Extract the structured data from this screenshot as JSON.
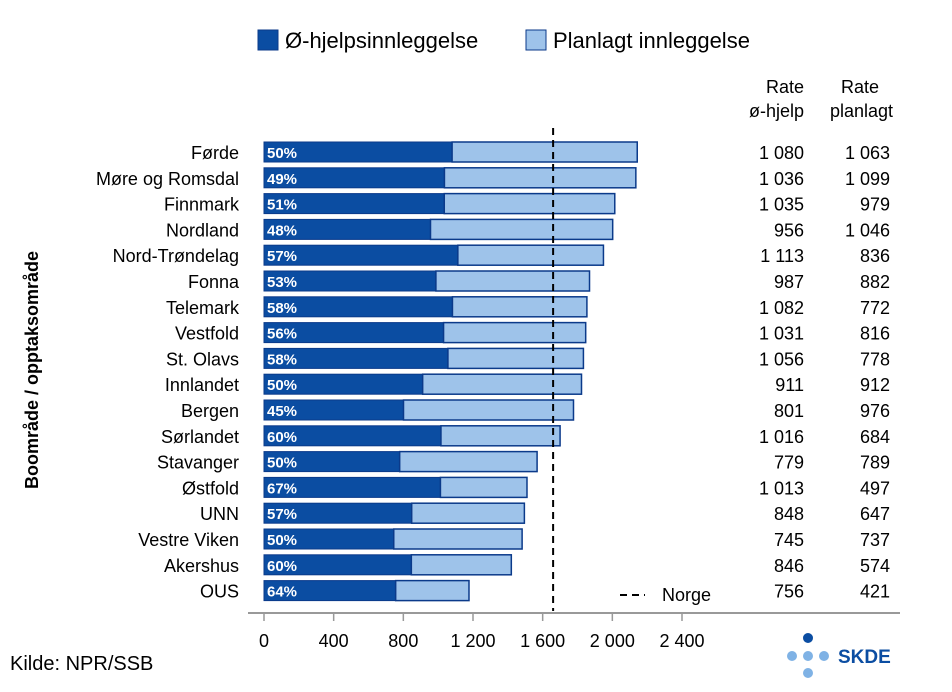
{
  "chart_data": {
    "type": "bar",
    "stacked": true,
    "orientation": "horizontal",
    "legend": {
      "position": "top",
      "items": [
        {
          "name": "Ø-hjelpsinnleggelse",
          "color": "#0b4da2"
        },
        {
          "name": "Planlagt innleggelse",
          "color": "#9ec3ea"
        }
      ]
    },
    "ylabel": "Boområde / opptaksområde",
    "categories": [
      "Førde",
      "Møre og Romsdal",
      "Finnmark",
      "Nordland",
      "Nord-Trøndelag",
      "Fonna",
      "Telemark",
      "Vestfold",
      "St. Olavs",
      "Innlandet",
      "Bergen",
      "Sørlandet",
      "Stavanger",
      "Østfold",
      "UNN",
      "Vestre Viken",
      "Akershus",
      "OUS"
    ],
    "series": [
      {
        "name": "Ø-hjelpsinnleggelse",
        "values": [
          1080,
          1036,
          1035,
          956,
          1113,
          987,
          1082,
          1031,
          1056,
          911,
          801,
          1016,
          779,
          1013,
          848,
          745,
          846,
          756
        ]
      },
      {
        "name": "Planlagt innleggelse",
        "values": [
          1063,
          1099,
          979,
          1046,
          836,
          882,
          772,
          816,
          778,
          912,
          976,
          684,
          789,
          497,
          647,
          737,
          574,
          421
        ]
      }
    ],
    "bar_labels": [
      "50%",
      "49%",
      "51%",
      "48%",
      "57%",
      "53%",
      "58%",
      "56%",
      "58%",
      "50%",
      "45%",
      "60%",
      "50%",
      "67%",
      "57%",
      "50%",
      "60%",
      "64%"
    ],
    "rate_ohjelp": [
      "1 080",
      "1 036",
      "1 035",
      "956",
      "1 113",
      "987",
      "1 082",
      "1 031",
      "1 056",
      "911",
      "801",
      "1 016",
      "779",
      "1 013",
      "848",
      "745",
      "846",
      "756"
    ],
    "rate_planlagt": [
      "1 063",
      "1 099",
      "979",
      "1 046",
      "836",
      "882",
      "772",
      "816",
      "778",
      "912",
      "976",
      "684",
      "789",
      "497",
      "647",
      "737",
      "574",
      "421"
    ],
    "xlim": [
      0,
      2400
    ],
    "xticks": [
      0,
      400,
      800,
      1200,
      1600,
      2000,
      2400
    ],
    "xtick_labels": [
      "0",
      "400",
      "800",
      "1 200",
      "1 600",
      "2 000",
      "2 400"
    ],
    "reference_line": {
      "label": "Norge",
      "value": 1660,
      "style": "dashed"
    },
    "table_headers": {
      "col1_line1": "Rate",
      "col1_line2": "ø-hjelp",
      "col2_line1": "Rate",
      "col2_line2": "planlagt"
    },
    "grid": false
  },
  "source": "Kilde: NPR/SSB",
  "logo": {
    "text": "SKDE",
    "color": "#0b4da2",
    "dot_light": "#7fb2e5"
  },
  "colors": {
    "axis": "#999999",
    "bar_edge": "#0b3a8a"
  }
}
